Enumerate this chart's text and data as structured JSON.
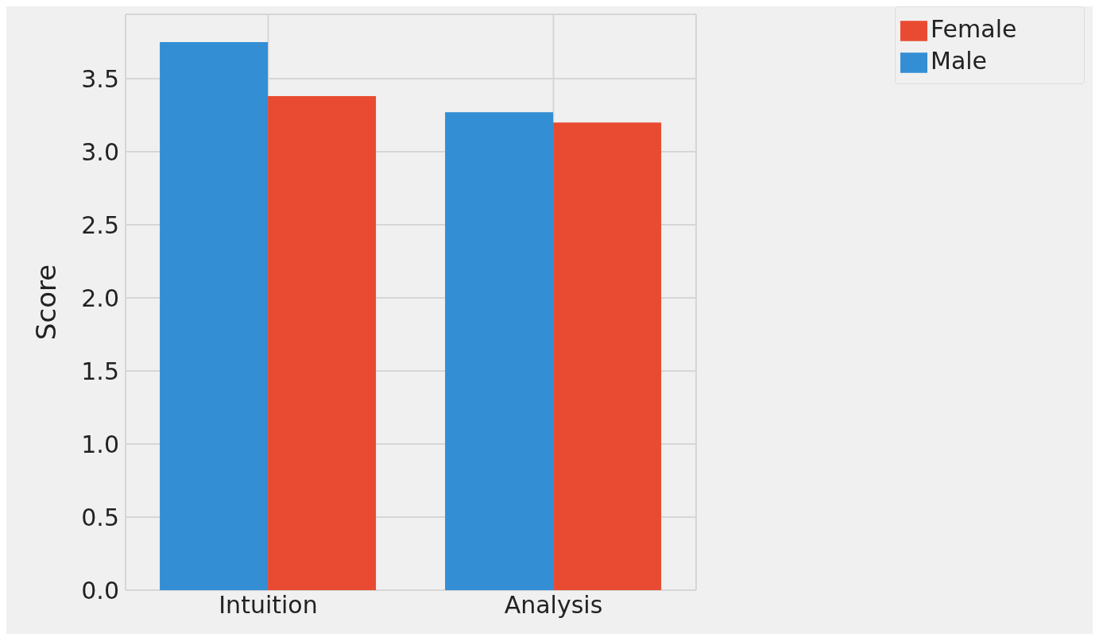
{
  "chart_data": {
    "type": "bar",
    "ylabel": "Score",
    "categories": [
      "Intuition",
      "Analysis"
    ],
    "series": [
      {
        "name": "Male",
        "color": "#338ed4",
        "values": [
          3.75,
          3.27
        ]
      },
      {
        "name": "Female",
        "color": "#e84b32",
        "values": [
          3.38,
          3.2
        ]
      }
    ],
    "ylim": [
      0,
      3.94
    ],
    "yticks": [
      {
        "value": 0,
        "label": "0.0"
      },
      {
        "value": 0.5,
        "label": "0.5"
      },
      {
        "value": 1,
        "label": "1.0"
      },
      {
        "value": 1.5,
        "label": "1.5"
      },
      {
        "value": 2,
        "label": "2.0"
      },
      {
        "value": 2.5,
        "label": "2.5"
      },
      {
        "value": 3,
        "label": "3.0"
      },
      {
        "value": 3.5,
        "label": "3.5"
      }
    ],
    "grid": true,
    "legend": "top right"
  }
}
